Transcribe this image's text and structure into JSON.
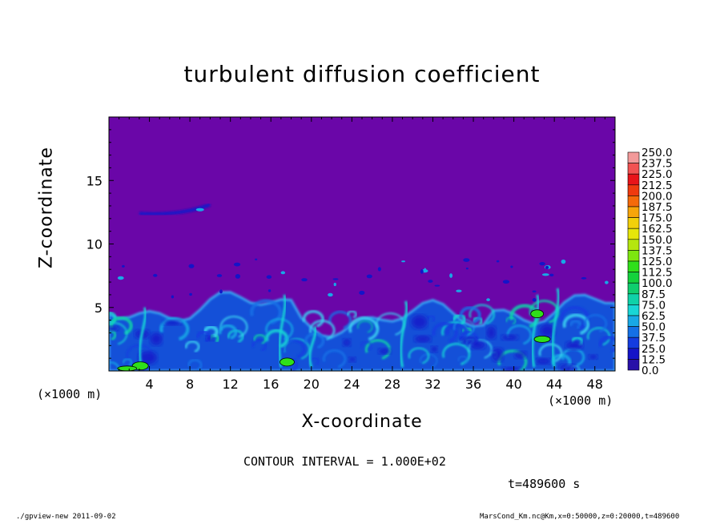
{
  "chart_data": {
    "type": "heatmap",
    "title": "turbulent diffusion coefficient",
    "xlabel": "X-coordinate",
    "ylabel": "Z-coordinate",
    "x_unit": "(×1000 m)",
    "y_unit": "(×1000 m)",
    "xlim": [
      0,
      50
    ],
    "ylim": [
      0,
      20
    ],
    "x_ticks": [
      "4",
      "8",
      "12",
      "16",
      "20",
      "24",
      "28",
      "32",
      "36",
      "40",
      "44",
      "48"
    ],
    "y_ticks": [
      "5",
      "10",
      "15"
    ],
    "colorbar_levels": [
      "250.0",
      "237.5",
      "225.0",
      "212.5",
      "200.0",
      "187.5",
      "175.0",
      "162.5",
      "150.0",
      "137.5",
      "125.0",
      "112.5",
      "100.0",
      "87.5",
      "75.0",
      "62.5",
      "50.0",
      "37.5",
      "25.0",
      "12.5",
      "0.0"
    ],
    "colorbar_colors": [
      "#f29a9a",
      "#f25252",
      "#e8141a",
      "#ef3a0f",
      "#f56a0a",
      "#f7a50a",
      "#f2d00a",
      "#e6e60a",
      "#b5e60f",
      "#7de60f",
      "#2fe01a",
      "#14d23c",
      "#0fce6e",
      "#0fd2a8",
      "#18d6d6",
      "#18a8e6",
      "#1470e6",
      "#143ce0",
      "#1414c8",
      "#2810a8",
      "#6a06a8"
    ],
    "background_value": "0.0",
    "boundary_layer_top": 5,
    "contour_interval": "CONTOUR INTERVAL = 1.000E+02",
    "time": "t=489600 s"
  },
  "footer": {
    "left": "./gpview-new   2011-09-02",
    "right": "MarsCond_Km.nc@Km,x=0:50000,z=0:20000,t=489600"
  }
}
